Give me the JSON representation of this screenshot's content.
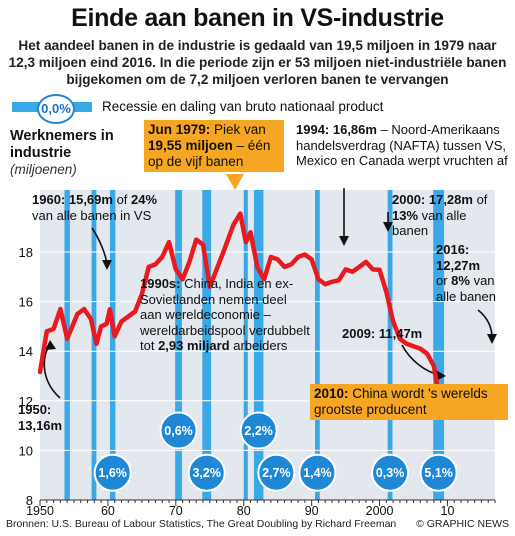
{
  "title": "Einde aan banen in VS-industrie",
  "subtitle": "Het aandeel banen in de industrie is gedaald van 19,5 miljoen in 1979 naar 12,3 miljoen eind 2016. In die periode zijn er 53 miljoen niet-industriële banen bijgekomen om de 7,2 miljoen verloren banen te vervangen",
  "legend": {
    "circle_value": "0,0%",
    "label": "Recessie en daling van bruto nationaal product"
  },
  "ylabel_bold": "Werknemers in industrie",
  "ylabel_units": "(miljoenen)",
  "annotations": {
    "y1950": "1950:",
    "v1950": "13,16m",
    "y1960": "1960: 15,69m",
    "t1960a": " of ",
    "p1960": "24%",
    "t1960b": "van alle banen in VS",
    "jun1979_head": "Jun 1979:",
    "jun1979_text": " Piek van ",
    "jun1979_value": "19,55 miljoen",
    "jun1979_tail": " – één op de vijf banen",
    "y1994": "1994: 16,86m",
    "t1994": " – Noord-Amerikaans handelsverdrag (NAFTA) tussen VS, Mexico en Canada werpt vruchten af",
    "y2000": "2000: 17,28m",
    "t2000a": " of ",
    "p2000": "13%",
    "t2000b": " van alle banen",
    "y2016": "2016:",
    "v2016": "12,27m",
    "t2016a": "or ",
    "p2016": "8%",
    "t2016b": " van alle banen",
    "y1990s": "1990s:",
    "t1990s": " China, India en ex-Sovietlanden nemen deel aan wereldeconomie – wereldarbeidspool verdubbelt tot ",
    "v1990s": "2,93 miljard",
    "t1990s_tail": " arbeiders",
    "y2009": "2009: 11,47m",
    "y2010": "2010:",
    "t2010": " China wordt 's werelds grootste producent"
  },
  "footer": "Bronnen: U.S. Bureau of Labour Statistics, The Great Doubling by Richard Freeman",
  "credit": "© GRAPHIC NEWS",
  "colors": {
    "line": "#e8191f",
    "recession": "#3aa8e6",
    "circle_border": "#1e88d6",
    "plot_bg": "#e3e7ee",
    "orange": "#f5a623"
  },
  "chart_data": {
    "type": "line",
    "ylabel": "Werknemers in industrie",
    "ylim": [
      8,
      20
    ],
    "xlim": [
      1950,
      2017
    ],
    "yticks": [
      8,
      10,
      12,
      14,
      16,
      18
    ],
    "xtick_labels": [
      {
        "x": 1950,
        "label": "1950"
      },
      {
        "x": 1960,
        "label": "60"
      },
      {
        "x": 1970,
        "label": "70"
      },
      {
        "x": 1980,
        "label": "80"
      },
      {
        "x": 1990,
        "label": "90"
      },
      {
        "x": 2000,
        "label": "2000"
      },
      {
        "x": 2010,
        "label": "10"
      }
    ],
    "series": [
      {
        "points": [
          [
            1950.0,
            13.16
          ],
          [
            1950.5,
            14.0
          ],
          [
            1951.0,
            14.8
          ],
          [
            1952.0,
            14.9
          ],
          [
            1953.0,
            15.7
          ],
          [
            1954.0,
            14.5
          ],
          [
            1955.5,
            15.5
          ],
          [
            1956.5,
            15.7
          ],
          [
            1957.5,
            15.3
          ],
          [
            1958.3,
            14.3
          ],
          [
            1959.0,
            15.0
          ],
          [
            1959.8,
            15.1
          ],
          [
            1960.3,
            15.69
          ],
          [
            1961.0,
            14.6
          ],
          [
            1962.0,
            15.2
          ],
          [
            1963.0,
            15.4
          ],
          [
            1964.0,
            15.6
          ],
          [
            1965.0,
            16.3
          ],
          [
            1966.0,
            17.4
          ],
          [
            1967.0,
            17.5
          ],
          [
            1968.0,
            17.8
          ],
          [
            1969.0,
            18.4
          ],
          [
            1970.0,
            17.3
          ],
          [
            1971.0,
            16.9
          ],
          [
            1972.0,
            17.6
          ],
          [
            1973.0,
            18.5
          ],
          [
            1974.0,
            18.3
          ],
          [
            1975.0,
            16.6
          ],
          [
            1976.0,
            17.3
          ],
          [
            1977.0,
            18.0
          ],
          [
            1978.5,
            19.1
          ],
          [
            1979.5,
            19.55
          ],
          [
            1980.3,
            18.4
          ],
          [
            1981.0,
            18.8
          ],
          [
            1982.0,
            17.4
          ],
          [
            1983.0,
            16.9
          ],
          [
            1984.0,
            17.8
          ],
          [
            1985.0,
            17.7
          ],
          [
            1986.0,
            17.4
          ],
          [
            1987.0,
            17.5
          ],
          [
            1988.0,
            17.8
          ],
          [
            1989.0,
            17.9
          ],
          [
            1990.0,
            17.7
          ],
          [
            1991.0,
            16.9
          ],
          [
            1992.0,
            16.7
          ],
          [
            1993.0,
            16.8
          ],
          [
            1994.0,
            16.86
          ],
          [
            1995.0,
            17.3
          ],
          [
            1996.0,
            17.2
          ],
          [
            1997.0,
            17.4
          ],
          [
            1998.0,
            17.6
          ],
          [
            1999.0,
            17.3
          ],
          [
            2000.0,
            17.28
          ],
          [
            2001.0,
            16.4
          ],
          [
            2002.0,
            15.2
          ],
          [
            2003.0,
            14.5
          ],
          [
            2004.0,
            14.3
          ],
          [
            2005.0,
            14.2
          ],
          [
            2006.0,
            14.1
          ],
          [
            2007.0,
            13.9
          ],
          [
            2008.0,
            13.4
          ],
          [
            2009.0,
            11.8
          ],
          [
            2009.7,
            11.47
          ],
          [
            2010.5,
            11.5
          ],
          [
            2011.5,
            11.7
          ],
          [
            2012.5,
            11.9
          ],
          [
            2013.5,
            12.0
          ],
          [
            2014.5,
            12.2
          ],
          [
            2015.5,
            12.3
          ],
          [
            2016.5,
            12.27
          ]
        ]
      }
    ],
    "recessions": [
      {
        "start": 1953.6,
        "end": 1954.4,
        "label": "",
        "y": 0
      },
      {
        "start": 1957.6,
        "end": 1958.3,
        "label": "",
        "y": 0
      },
      {
        "start": 1960.3,
        "end": 1961.1,
        "label": "1,6%",
        "y": 9.1
      },
      {
        "start": 1969.9,
        "end": 1970.9,
        "label": "0,6%",
        "y": 10.8
      },
      {
        "start": 1973.9,
        "end": 1975.2,
        "label": "3,2%",
        "y": 9.1
      },
      {
        "start": 1980.0,
        "end": 1980.6,
        "label": "",
        "y": 0
      },
      {
        "start": 1981.5,
        "end": 1982.9,
        "label": "2,2%",
        "y": 10.8
      },
      {
        "start": 1990.5,
        "end": 1991.2,
        "label": "1,4%",
        "y": 9.1
      },
      {
        "start": 2001.2,
        "end": 2001.9,
        "label": "0,3%",
        "y": 9.1
      },
      {
        "start": 2007.9,
        "end": 2009.5,
        "label": "5,1%",
        "y": 9.1
      }
    ],
    "extra_circles": [
      {
        "x": 1984.8,
        "y": 9.1,
        "label": "2,7%"
      }
    ]
  }
}
